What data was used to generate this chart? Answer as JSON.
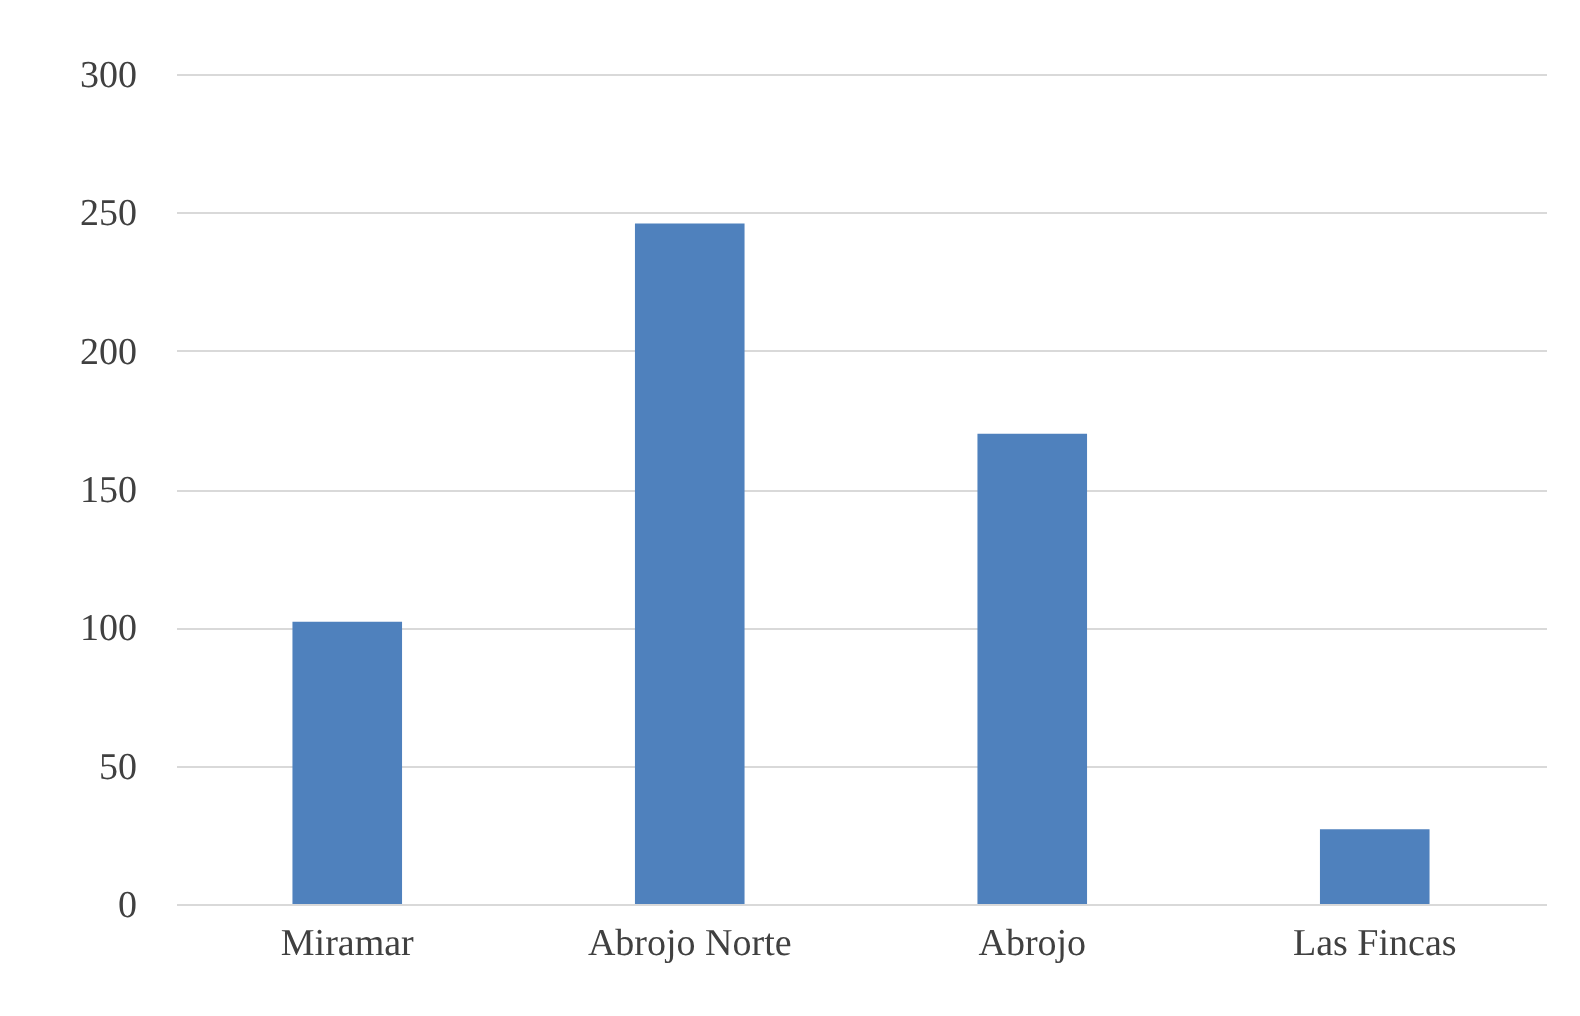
{
  "chart_data": {
    "type": "bar",
    "categories": [
      "Miramar",
      "Abrojo Norte",
      "Abrojo",
      "Las Fincas"
    ],
    "values": [
      102,
      246,
      170,
      27
    ],
    "color": "#4f81bd",
    "ylim": [
      0,
      300
    ],
    "yticks": [
      0,
      50,
      100,
      150,
      200,
      250,
      300
    ],
    "grid": "y"
  }
}
